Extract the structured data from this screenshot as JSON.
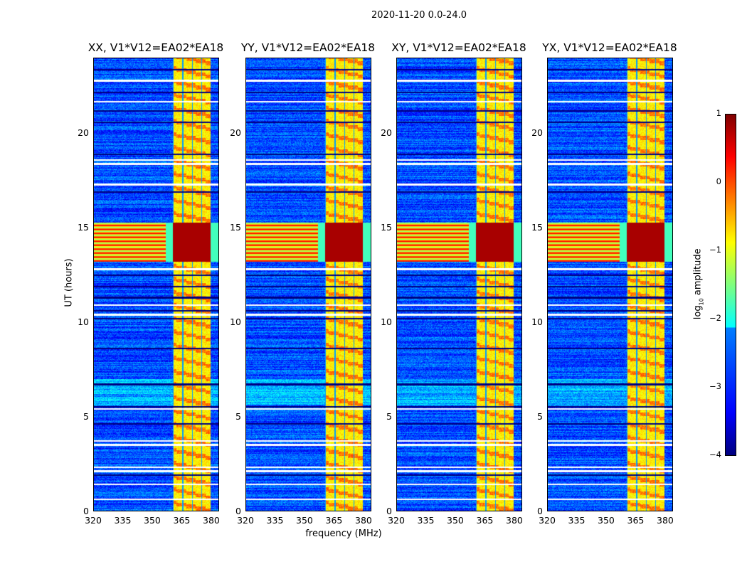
{
  "chart_data": {
    "type": "heatmap",
    "title": "2020-11-20 0.0-24.0",
    "xlabel": "frequency (MHz)",
    "ylabel": "UT (hours)",
    "xlim": [
      320,
      384
    ],
    "ylim": [
      0,
      24
    ],
    "xticks": [
      "320",
      "335",
      "350",
      "365",
      "380"
    ],
    "xtick_values": [
      320,
      335,
      350,
      365,
      380
    ],
    "yticks": [
      "0",
      "5",
      "10",
      "15",
      "20"
    ],
    "ytick_values": [
      0,
      5,
      10,
      15,
      20
    ],
    "colormap": "jet",
    "panels": [
      {
        "title": "XX, V1*V12=EA02*EA18"
      },
      {
        "title": "YY, V1*V12=EA02*EA18"
      },
      {
        "title": "XY, V1*V12=EA02*EA18"
      },
      {
        "title": "YX, V1*V12=EA02*EA18"
      }
    ],
    "colorbar": {
      "label": "log10 amplitude",
      "label_main": "log",
      "label_sub": "10",
      "label_rest": " amplitude",
      "range": [
        -4,
        1
      ],
      "ticks": [
        "1",
        "0",
        "−1",
        "−2",
        "−3",
        "−4"
      ],
      "tick_values": [
        1,
        0,
        -1,
        -2,
        -3,
        -4
      ]
    },
    "rfi_band_mhz": [
      360.5,
      380
    ],
    "background_log_amp": -3,
    "rfi_log_amp": -0.8,
    "strong_rfi_hours": [
      13.2,
      15.3
    ],
    "strong_rfi_log_amp": 0.8,
    "flagged_hours": [
      0.6,
      1.4,
      2.1,
      2.3,
      3.5,
      3.7,
      5.4,
      10.4,
      10.9,
      12.8,
      17.3,
      18.4,
      18.6,
      21.7,
      22.8
    ],
    "dropout_hours": [
      1.9,
      4.6,
      5.5,
      6.7,
      8.6,
      10.2,
      10.6,
      11.3,
      11.9,
      12.5,
      16.9,
      18.9,
      20.6,
      21.2,
      22.2,
      23.4
    ]
  }
}
